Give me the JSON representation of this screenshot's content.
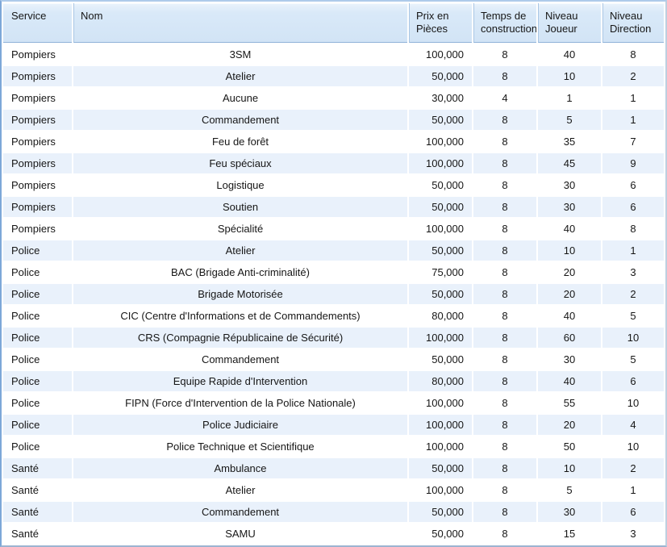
{
  "table": {
    "columns": [
      {
        "key": "service",
        "label": "Service"
      },
      {
        "key": "nom",
        "label": "Nom"
      },
      {
        "key": "prix",
        "label": "Prix en Pièces"
      },
      {
        "key": "temps",
        "label": "Temps de construction"
      },
      {
        "key": "niveau_joueur",
        "label": "Niveau Joueur"
      },
      {
        "key": "niveau_direction",
        "label": "Niveau Direction"
      }
    ],
    "rows": [
      [
        "Pompiers",
        "3SM",
        "100,000",
        "8",
        "40",
        "8"
      ],
      [
        "Pompiers",
        "Atelier",
        "50,000",
        "8",
        "10",
        "2"
      ],
      [
        "Pompiers",
        "Aucune",
        "30,000",
        "4",
        "1",
        "1"
      ],
      [
        "Pompiers",
        "Commandement",
        "50,000",
        "8",
        "5",
        "1"
      ],
      [
        "Pompiers",
        "Feu de forêt",
        "100,000",
        "8",
        "35",
        "7"
      ],
      [
        "Pompiers",
        "Feu spéciaux",
        "100,000",
        "8",
        "45",
        "9"
      ],
      [
        "Pompiers",
        "Logistique",
        "50,000",
        "8",
        "30",
        "6"
      ],
      [
        "Pompiers",
        "Soutien",
        "50,000",
        "8",
        "30",
        "6"
      ],
      [
        "Pompiers",
        "Spécialité",
        "100,000",
        "8",
        "40",
        "8"
      ],
      [
        "Police",
        "Atelier",
        "50,000",
        "8",
        "10",
        "1"
      ],
      [
        "Police",
        "BAC (Brigade Anti-criminalité)",
        "75,000",
        "8",
        "20",
        "3"
      ],
      [
        "Police",
        "Brigade Motorisée",
        "50,000",
        "8",
        "20",
        "2"
      ],
      [
        "Police",
        "CIC (Centre d'Informations et de Commandements)",
        "80,000",
        "8",
        "40",
        "5"
      ],
      [
        "Police",
        "CRS (Compagnie Républicaine de Sécurité)",
        "100,000",
        "8",
        "60",
        "10"
      ],
      [
        "Police",
        "Commandement",
        "50,000",
        "8",
        "30",
        "5"
      ],
      [
        "Police",
        "Equipe Rapide d'Intervention",
        "80,000",
        "8",
        "40",
        "6"
      ],
      [
        "Police",
        "FIPN (Force d'Intervention de la Police Nationale)",
        "100,000",
        "8",
        "55",
        "10"
      ],
      [
        "Police",
        "Police Judiciaire",
        "100,000",
        "8",
        "20",
        "4"
      ],
      [
        "Police",
        "Police Technique et Scientifique",
        "100,000",
        "8",
        "50",
        "10"
      ],
      [
        "Santé",
        "Ambulance",
        "50,000",
        "8",
        "10",
        "2"
      ],
      [
        "Santé",
        "Atelier",
        "100,000",
        "8",
        "5",
        "1"
      ],
      [
        "Santé",
        "Commandement",
        "50,000",
        "8",
        "30",
        "6"
      ],
      [
        "Santé",
        "SAMU",
        "50,000",
        "8",
        "15",
        "3"
      ]
    ]
  },
  "colors": {
    "header_bg": "#d9e9f8",
    "row_bg": "#ffffff",
    "row_alt_bg": "#e9f1fb",
    "header_divider": "#a9c6e4",
    "header_underline": "#8fb2d8",
    "border_left": "#7da7d8",
    "border_top": "#aecbea",
    "border_right": "#bdcfe0",
    "border_bottom": "#9db4d1",
    "text": "#161616"
  }
}
